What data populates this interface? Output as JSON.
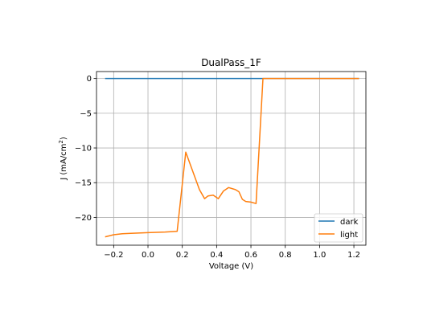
{
  "chart_data": {
    "type": "line",
    "title": "DualPass_1F",
    "xlabel": "Voltage (V)",
    "ylabel_main": "J (mA/cm",
    "ylabel_sup": "2",
    "ylabel_close": ")",
    "xlim": [
      -0.3,
      1.27
    ],
    "ylim": [
      -24.0,
      1.0
    ],
    "x_ticks": [
      -0.2,
      0.0,
      0.2,
      0.4,
      0.6,
      0.8,
      1.0,
      1.2
    ],
    "x_tick_labels": [
      "−0.2",
      "0.0",
      "0.2",
      "0.4",
      "0.6",
      "0.8",
      "1.0",
      "1.2"
    ],
    "y_ticks": [
      0,
      -5,
      -10,
      -15,
      -20
    ],
    "y_tick_labels": [
      "0",
      "−5",
      "−10",
      "−15",
      "−20"
    ],
    "grid": true,
    "legend_position": "lower-right",
    "series": [
      {
        "name": "dark",
        "color": "#1f77b4",
        "x": [
          -0.25,
          1.23
        ],
        "y": [
          0.0,
          0.0
        ]
      },
      {
        "name": "light",
        "color": "#ff7f0e",
        "x": [
          -0.25,
          -0.2,
          -0.15,
          -0.1,
          0.0,
          0.1,
          0.17,
          0.22,
          0.3,
          0.33,
          0.35,
          0.38,
          0.41,
          0.44,
          0.47,
          0.51,
          0.53,
          0.55,
          0.57,
          0.6,
          0.63,
          0.67,
          0.68,
          1.23
        ],
        "y": [
          -22.8,
          -22.5,
          -22.35,
          -22.3,
          -22.2,
          -22.1,
          -22.0,
          -10.6,
          -16.0,
          -17.3,
          -16.9,
          -16.8,
          -17.3,
          -16.2,
          -15.7,
          -16.0,
          -16.3,
          -17.4,
          -17.7,
          -17.8,
          -18.0,
          0.0,
          0.0,
          0.0
        ]
      }
    ]
  }
}
